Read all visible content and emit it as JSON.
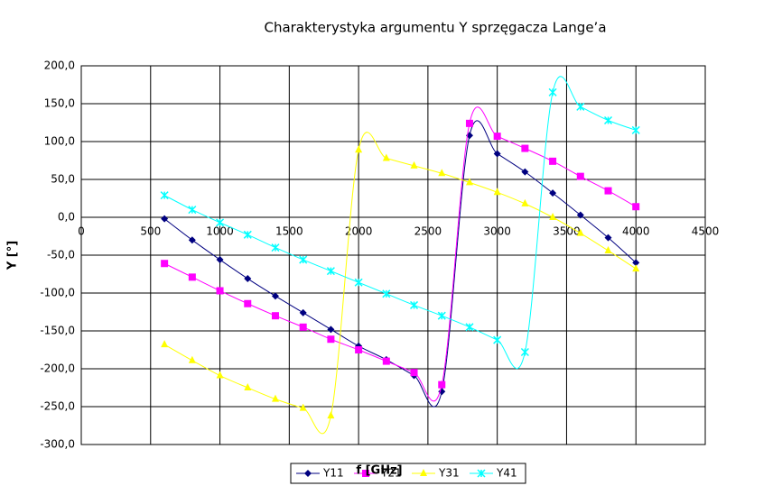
{
  "chart_data": {
    "type": "line",
    "title": "Charakterystyka argumentu Y sprzęgacza Lange’a",
    "x_label": "f [GHz]",
    "y_label": "Y [°]",
    "x": [
      600,
      800,
      1000,
      1200,
      1400,
      1600,
      1800,
      2000,
      2200,
      2400,
      2600,
      2800,
      3000,
      3200,
      3400,
      3600,
      3800,
      4000
    ],
    "series": [
      {
        "name": "Y11",
        "color": "#000080",
        "marker": "diamond",
        "values": [
          -2,
          -30,
          -56,
          -81,
          -104,
          -126,
          -148,
          -170,
          -188,
          -209,
          -230,
          108,
          84,
          60,
          32,
          3,
          -27,
          -60
        ]
      },
      {
        "name": "Y21",
        "color": "#ff00ff",
        "marker": "square",
        "values": [
          -61,
          -79,
          -97,
          -114,
          -130,
          -145,
          -161,
          -175,
          -190,
          -205,
          -221,
          124,
          107,
          91,
          74,
          54,
          35,
          14
        ]
      },
      {
        "name": "Y31",
        "color": "#ffff00",
        "marker": "triangle",
        "values": [
          -168,
          -189,
          -209,
          -225,
          -240,
          -252,
          -262,
          89,
          78,
          68,
          58,
          46,
          33,
          18,
          0,
          -21,
          -44,
          -68
        ]
      },
      {
        "name": "Y41",
        "color": "#00ffff",
        "marker": "star",
        "values": [
          29,
          10,
          -7,
          -23,
          -40,
          -56,
          -71,
          -86,
          -101,
          -116,
          -130,
          -145,
          -162,
          -178,
          165,
          146,
          128,
          115
        ]
      }
    ],
    "xlim": [
      0,
      4500
    ],
    "xticks": [
      0,
      500,
      1000,
      1500,
      2000,
      2500,
      3000,
      3500,
      4000,
      4500
    ],
    "ylim": [
      -300,
      200
    ],
    "yticks": [
      {
        "value": -300,
        "label": "-300,0"
      },
      {
        "value": -250,
        "label": "-250,0"
      },
      {
        "value": -200,
        "label": "-200,0"
      },
      {
        "value": -150,
        "label": "-150,0"
      },
      {
        "value": -100,
        "label": "-100,0"
      },
      {
        "value": -50,
        "label": "-50,0"
      },
      {
        "value": 0,
        "label": "0,0"
      },
      {
        "value": 50,
        "label": "50,0"
      },
      {
        "value": 100,
        "label": "100,0"
      },
      {
        "value": 150,
        "label": "150,0"
      },
      {
        "value": 200,
        "label": "200,0"
      }
    ],
    "grid": true,
    "legend": "bottom"
  }
}
